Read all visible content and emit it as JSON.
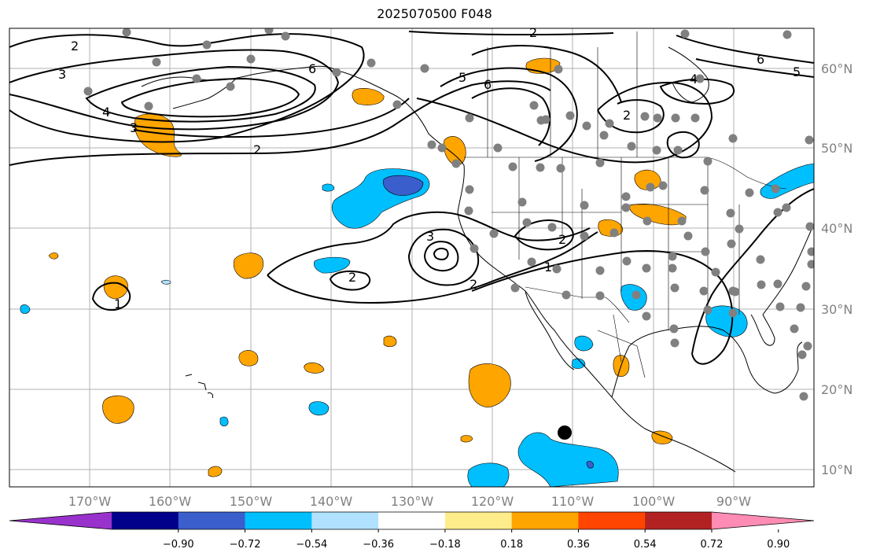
{
  "title": "2025070500 F048",
  "map": {
    "lon_labels": [
      "170°W",
      "160°W",
      "150°W",
      "140°W",
      "130°W",
      "120°W",
      "110°W",
      "100°W",
      "90°W"
    ],
    "lat_labels": [
      "60°N",
      "50°N",
      "40°N",
      "30°N",
      "20°N",
      "10°N"
    ],
    "contour_labels": [
      "2",
      "3",
      "4",
      "3",
      "2",
      "6",
      "5",
      "6",
      "2",
      "6",
      "5",
      "4",
      "2",
      "2",
      "3",
      "2",
      "2",
      "1",
      "1"
    ],
    "positive_fill_color": "#ffa500",
    "negative_fill_color": "#00bfff",
    "strong_negative_color": "#3a5fcd",
    "station_color": "#808080",
    "storm_marker_color": "#000000"
  },
  "colorbar": {
    "colors": [
      "#9932cc",
      "#00008b",
      "#3a5fcd",
      "#00bfff",
      "#b0e2ff",
      "#ffffff",
      "#ffec8b",
      "#ffa500",
      "#ff4500",
      "#b22222",
      "#ff8cb4"
    ],
    "tick_labels": [
      "−0.90",
      "−0.72",
      "−0.54",
      "−0.36",
      "−0.18",
      "0.18",
      "0.36",
      "0.54",
      "0.72",
      "0.90"
    ]
  }
}
